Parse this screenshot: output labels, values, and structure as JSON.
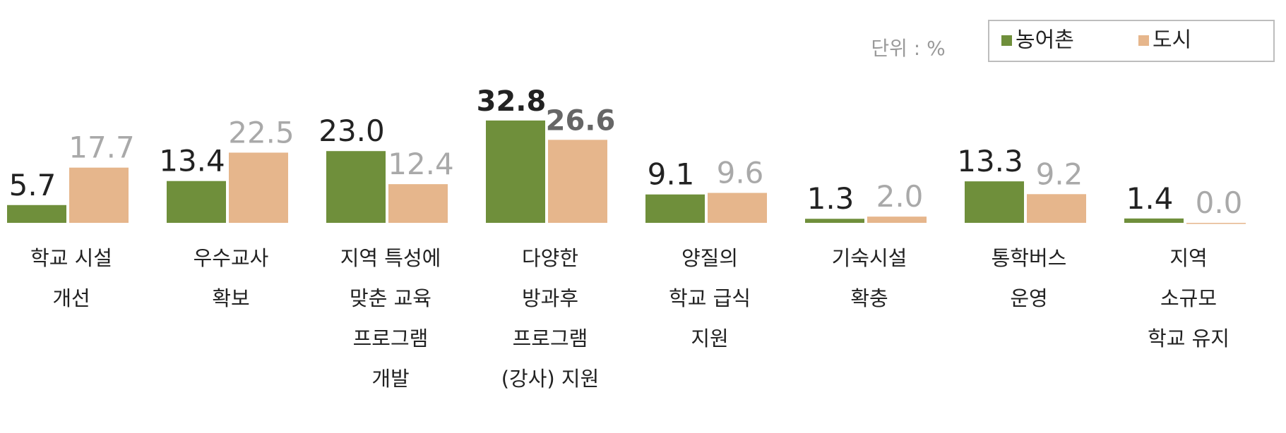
{
  "chart_data": {
    "type": "bar",
    "unit_note": "단위 : %",
    "categories": [
      "학교 시설\n개선",
      "우수교사\n확보",
      "지역 특성에\n맞춘 교육\n프로그램\n개발",
      "다양한\n방과후\n프로그램\n(강사) 지원",
      "양질의\n학교 급식\n지원",
      "기숙시설\n확충",
      "통학버스\n운영",
      "지역\n소규모\n학교 유지"
    ],
    "series": [
      {
        "name": "농어촌",
        "color": "#6f8f3b",
        "label_color": "#222222",
        "values": [
          5.7,
          13.4,
          23.0,
          32.8,
          9.1,
          1.3,
          13.3,
          1.4
        ],
        "value_labels": [
          "5.7",
          "13.4",
          "23.0",
          "32.8",
          "9.1",
          "1.3",
          "13.3",
          "1.4"
        ]
      },
      {
        "name": "도시",
        "color": "#e6b68c",
        "label_color": "#a9a9a9",
        "values": [
          17.7,
          22.5,
          12.4,
          26.6,
          9.6,
          2.0,
          9.2,
          0.0
        ],
        "value_labels": [
          "17.7",
          "22.5",
          "12.4",
          "26.6",
          "9.6",
          "2.0",
          "9.2",
          "0.0"
        ]
      }
    ],
    "highlight_category": 3,
    "ylim": [
      0,
      40
    ],
    "legend": "top-right"
  }
}
